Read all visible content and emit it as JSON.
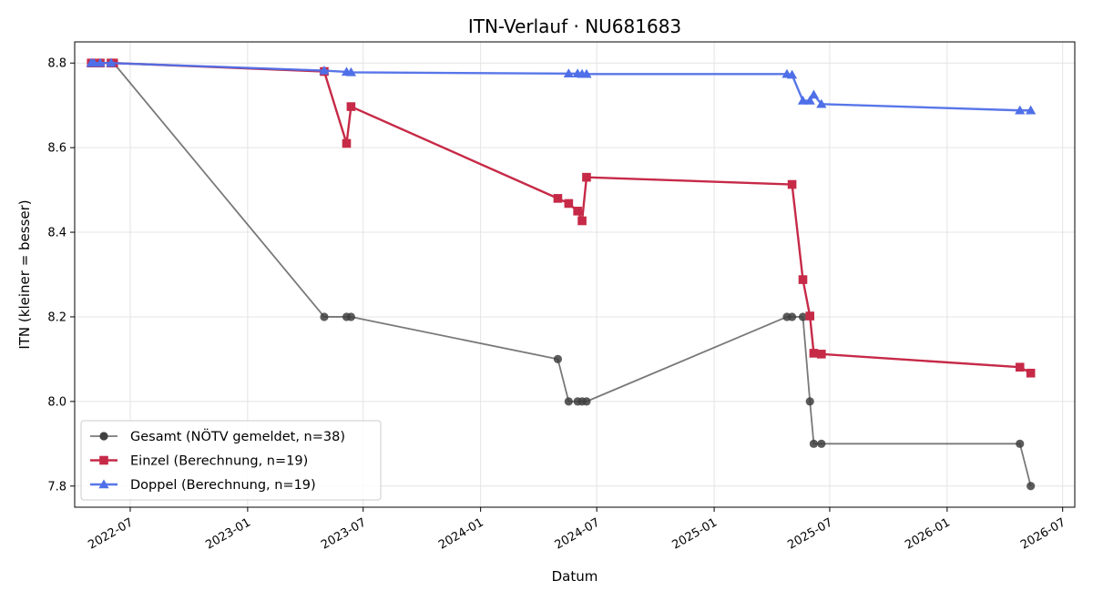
{
  "chart_data": {
    "type": "line",
    "title": "ITN-Verlauf · NU681683",
    "xlabel": "Datum",
    "ylabel": "ITN  (kleiner = besser)",
    "xlim": [
      "2022-04-05",
      "2026-07-20"
    ],
    "ylim": [
      7.75,
      8.85
    ],
    "x_ticks": [
      "2022-07",
      "2023-01",
      "2023-07",
      "2024-01",
      "2024-07",
      "2025-01",
      "2025-07",
      "2026-01",
      "2026-07"
    ],
    "y_ticks": [
      7.8,
      8.0,
      8.2,
      8.4,
      8.6,
      8.8
    ],
    "grid": true,
    "legend_position": "lower-left",
    "series": [
      {
        "name": "Gesamt (NÖTV gemeldet, n=38)",
        "color": "#404040",
        "marker": "circle",
        "points": [
          [
            "2022-05-01",
            8.8
          ],
          [
            "2022-05-05",
            8.8
          ],
          [
            "2022-05-15",
            8.8
          ],
          [
            "2022-06-01",
            8.8
          ],
          [
            "2022-06-05",
            8.8
          ],
          [
            "2023-05-01",
            8.2
          ],
          [
            "2023-06-05",
            8.2
          ],
          [
            "2023-06-12",
            8.2
          ],
          [
            "2024-05-01",
            8.1
          ],
          [
            "2024-05-18",
            8.0
          ],
          [
            "2024-06-01",
            8.0
          ],
          [
            "2024-06-08",
            8.0
          ],
          [
            "2024-06-15",
            8.0
          ],
          [
            "2025-04-25",
            8.2
          ],
          [
            "2025-05-03",
            8.2
          ],
          [
            "2025-05-20",
            8.2
          ],
          [
            "2025-05-31",
            8.0
          ],
          [
            "2025-06-06",
            7.9
          ],
          [
            "2025-06-18",
            7.9
          ],
          [
            "2026-04-25",
            7.9
          ],
          [
            "2026-05-12",
            7.8
          ]
        ]
      },
      {
        "name": "Einzel (Berechnung, n=19)",
        "color": "#c62a47",
        "marker": "square",
        "points": [
          [
            "2022-05-01",
            8.8
          ],
          [
            "2022-05-15",
            8.8
          ],
          [
            "2022-06-01",
            8.8
          ],
          [
            "2022-06-05",
            8.8
          ],
          [
            "2023-05-01",
            8.78
          ],
          [
            "2023-06-05",
            8.61
          ],
          [
            "2023-06-12",
            8.697
          ],
          [
            "2024-05-01",
            8.48
          ],
          [
            "2024-05-18",
            8.468
          ],
          [
            "2024-06-01",
            8.45
          ],
          [
            "2024-06-08",
            8.427
          ],
          [
            "2024-06-15",
            8.53
          ],
          [
            "2025-05-03",
            8.513
          ],
          [
            "2025-05-20",
            8.288
          ],
          [
            "2025-05-31",
            8.202
          ],
          [
            "2025-06-06",
            8.114
          ],
          [
            "2025-06-18",
            8.112
          ],
          [
            "2026-04-25",
            8.081
          ],
          [
            "2026-05-12",
            8.067
          ]
        ]
      },
      {
        "name": "Doppel (Berechnung, n=19)",
        "color": "#4f6fe8",
        "marker": "triangle",
        "points": [
          [
            "2022-05-01",
            8.8
          ],
          [
            "2022-05-05",
            8.8
          ],
          [
            "2022-05-15",
            8.8
          ],
          [
            "2022-06-01",
            8.8
          ],
          [
            "2023-05-01",
            8.782
          ],
          [
            "2023-06-05",
            8.779
          ],
          [
            "2023-06-12",
            8.778
          ],
          [
            "2024-05-18",
            8.775
          ],
          [
            "2024-06-01",
            8.775
          ],
          [
            "2024-06-08",
            8.774
          ],
          [
            "2024-06-15",
            8.774
          ],
          [
            "2025-04-25",
            8.774
          ],
          [
            "2025-05-03",
            8.772
          ],
          [
            "2025-05-20",
            8.711
          ],
          [
            "2025-05-31",
            8.711
          ],
          [
            "2025-06-06",
            8.725
          ],
          [
            "2025-06-18",
            8.703
          ],
          [
            "2026-04-25",
            8.688
          ],
          [
            "2026-05-12",
            8.688
          ]
        ]
      }
    ]
  }
}
